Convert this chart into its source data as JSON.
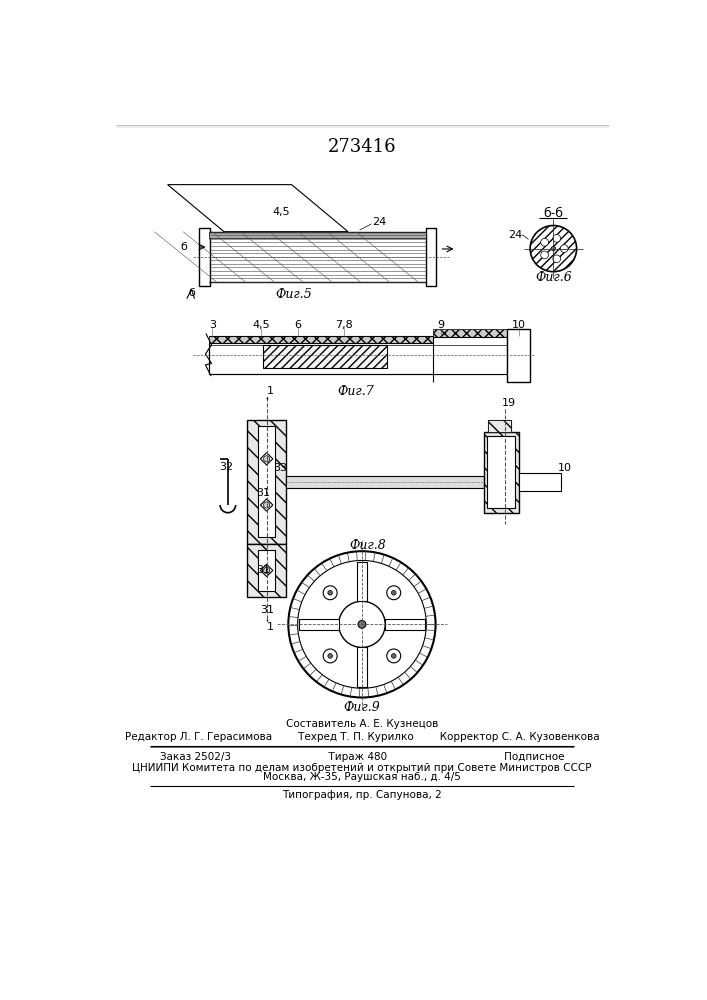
{
  "title": "273416",
  "bg_color": "#ffffff",
  "line_color": "#000000",
  "fig5_label": "Фиг.5",
  "fig6_label": "Фиг.6",
  "fig7_label": "Фиг.7",
  "fig8_label": "Фиг.8",
  "fig9_label": "Фиг.9",
  "footer_lines": [
    "Составитель А. Е. Кузнецов",
    "Редактор Л. Г. Герасимова        Техред Т. П. Курилко        Корректор С. А. Кузовенкова",
    "Заказ 2502/3                              Тираж 480                                    Подписное",
    "ЦНИИПИ Комитета по делам изобретений и открытий при Совете Министров СССР",
    "Москва, Ж-35, Раушская наб., д. 4/5",
    "Типография, пр. Сапунова, 2"
  ]
}
